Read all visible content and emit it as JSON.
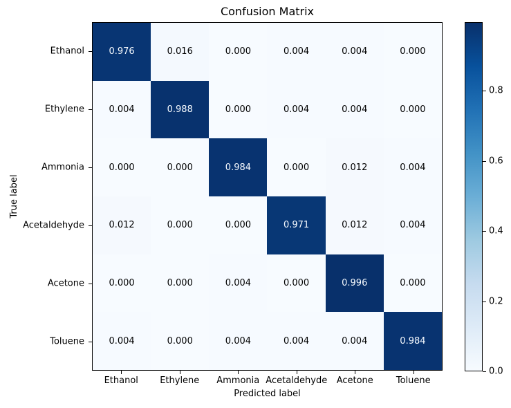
{
  "chart_data": {
    "type": "heatmap",
    "title": "Confusion Matrix",
    "xlabel": "Predicted label",
    "ylabel": "True label",
    "categories": [
      "Ethanol",
      "Ethylene",
      "Ammonia",
      "Acetaldehyde",
      "Acetone",
      "Toluene"
    ],
    "matrix": [
      [
        0.976,
        0.016,
        0.0,
        0.004,
        0.004,
        0.0
      ],
      [
        0.004,
        0.988,
        0.0,
        0.004,
        0.004,
        0.0
      ],
      [
        0.0,
        0.0,
        0.984,
        0.0,
        0.012,
        0.004
      ],
      [
        0.012,
        0.0,
        0.0,
        0.971,
        0.012,
        0.004
      ],
      [
        0.0,
        0.0,
        0.004,
        0.0,
        0.996,
        0.0
      ],
      [
        0.004,
        0.0,
        0.004,
        0.004,
        0.004,
        0.984
      ]
    ],
    "cell_value_decimals": 3,
    "vmin": 0.0,
    "vmax": 0.996,
    "colormap": "Blues",
    "color_min": "#f7fbff",
    "color_max": "#08306b",
    "grid": false,
    "colorbar": {
      "position": "right",
      "tick_labels": [
        "0.0",
        "0.2",
        "0.4",
        "0.6",
        "0.8"
      ],
      "tick_values": [
        0.0,
        0.2,
        0.4,
        0.6,
        0.8
      ]
    }
  }
}
